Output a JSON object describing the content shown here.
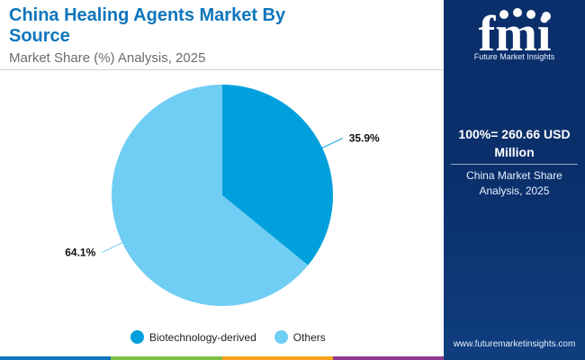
{
  "header": {
    "title": "China Healing Agents Market By Source",
    "subtitle": "Market Share (%) Analysis, 2025"
  },
  "chart_data": {
    "type": "pie",
    "title": "China Healing Agents Market By Source",
    "categories": [
      "Biotechnology-derived",
      "Others"
    ],
    "values": [
      35.9,
      64.1
    ],
    "labels": [
      "35.9%",
      "64.1%"
    ],
    "colors": [
      "#00a0dc",
      "#70cdf3"
    ],
    "legend_position": "bottom"
  },
  "legend": {
    "items": [
      {
        "label": "Biotechnology-derived",
        "color": "#00a0dc"
      },
      {
        "label": "Others",
        "color": "#70cdf3"
      }
    ]
  },
  "side_panel": {
    "brand_letters": "fmi",
    "brand_name": "Future Market Insights",
    "total": "100%= 260.66 USD Million",
    "description": "China Market Share Analysis, 2025",
    "website": "www.futuremarketinsights.com"
  },
  "colors": {
    "title": "#0f75bc",
    "panel_background": "#0b2f6b",
    "bottom_bar": [
      "#0f75bc",
      "#7cc142",
      "#f7a21b",
      "#8e3b8f"
    ]
  }
}
